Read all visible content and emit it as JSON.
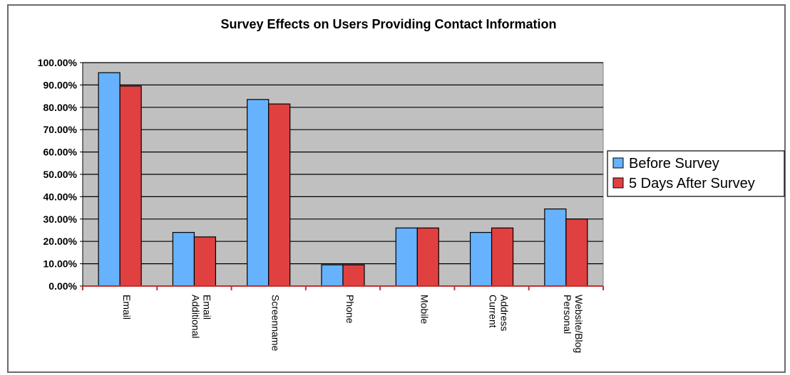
{
  "chart_data": {
    "type": "bar",
    "title": "Survey Effects on Users Providing Contact Information",
    "xlabel": "",
    "ylabel": "",
    "ylim": [
      0,
      100
    ],
    "yticks": [
      "0.00%",
      "10.00%",
      "20.00%",
      "30.00%",
      "40.00%",
      "50.00%",
      "60.00%",
      "70.00%",
      "80.00%",
      "90.00%",
      "100.00%"
    ],
    "categories": [
      [
        "Email"
      ],
      [
        "Additional",
        "Email"
      ],
      [
        "Screenname"
      ],
      [
        "Phone"
      ],
      [
        "Mobile"
      ],
      [
        "Current",
        "Address"
      ],
      [
        "Personal",
        "Website/Blog"
      ]
    ],
    "series": [
      {
        "name": "Before Survey",
        "color": "#66b2ff",
        "values": [
          95.5,
          24,
          83.5,
          9.5,
          26,
          24,
          34.5
        ]
      },
      {
        "name": "5 Days After Survey",
        "color": "#e04040",
        "values": [
          89.5,
          22,
          81.5,
          9.5,
          26,
          26,
          30
        ]
      }
    ],
    "grid": true,
    "plot_background": "#c0c0c0",
    "legend_position": "right"
  }
}
